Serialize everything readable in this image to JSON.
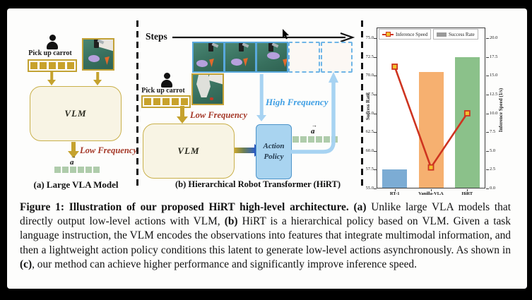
{
  "panels": {
    "a": {
      "caption": "(a) Large VLA Model",
      "instruction": "Pick up carrot",
      "vlm": "VLM",
      "low_frequency": "Low Frequency",
      "action_symbol": "a",
      "instruction_tokens": 5,
      "action_tokens": 6
    },
    "b": {
      "caption": "(b) Hierarchical Robot Transformer (HiRT)",
      "steps": "Steps",
      "instruction": "Pick up carrot",
      "vlm": "VLM",
      "low_frequency": "Low Frequency",
      "high_frequency": "High Frequency",
      "action_policy_line1": "Action",
      "action_policy_line2": "Policy",
      "action_symbol": "a",
      "instruction_tokens": 5,
      "action_tokens": 6
    }
  },
  "chart_data": {
    "type": "bar",
    "categories": [
      "RT-1",
      "Vanilla-VLA",
      "HiRT"
    ],
    "series": [
      {
        "name": "Success Rate",
        "type": "bar",
        "axis": "left",
        "values": [
          57.5,
          70.5,
          72.5
        ],
        "bar_colors": [
          "#7cacd4",
          "#f6b070",
          "#8bc18a"
        ]
      },
      {
        "name": "Inference Speed",
        "type": "line",
        "axis": "right",
        "values": [
          16.2,
          2.8,
          10.0
        ],
        "line_color": "#ce3420",
        "marker": "square",
        "marker_fill": "#f2c12e"
      }
    ],
    "left_axis": {
      "label": "Success Rate",
      "min": 55,
      "max": 75,
      "ticks": [
        "55.0",
        "57.5",
        "60.0",
        "62.5",
        "65.0",
        "67.5",
        "70.0",
        "72.5",
        "75.0"
      ]
    },
    "right_axis": {
      "label": "Inference Speed (1/s)",
      "min": 0,
      "max": 20,
      "ticks": [
        "0.0",
        "2.5",
        "5.0",
        "7.5",
        "10.0",
        "12.5",
        "15.0",
        "17.5",
        "20.0"
      ]
    },
    "legend": [
      {
        "label": "Inference Speed",
        "swatch": "red-line-yellow-square-marker"
      },
      {
        "label": "Success Rate",
        "swatch": "gray-bar"
      }
    ],
    "grid": false,
    "legend_position": "top"
  },
  "figure_caption": {
    "seg1_bold": "Figure 1: Illustration of our proposed HiRT high-level architecture.",
    "seg2": " ",
    "seg3_bold": "(a)",
    "seg4": " Unlike large VLA models that directly output low-level actions with VLM, ",
    "seg5_bold": "(b)",
    "seg6": " HiRT is a hierarchical policy based on VLM. Given a task language instruction, the VLM encodes the observations into features that integrate multimodal information, and then a lightweight action policy conditions this latent to generate low-level actions asynchronously. As shown in ",
    "seg7_bold": "(c)",
    "seg8": ", our method can achieve higher performance and significantly improve inference speed."
  },
  "colors": {
    "gold": "#c8a22c",
    "cream_box": "#f8f4e4",
    "vlm_border": "#c9b04a",
    "dark_red_text": "#a53828",
    "light_blue_arrow": "#a7d3f2",
    "blue_text": "#3f9fe4",
    "policy_fill": "#a9d4f0",
    "policy_border": "#4c93c9",
    "token_green": "#afccab",
    "bar_blue": "#7cacd4",
    "bar_orange": "#f6b070",
    "bar_green": "#8bc18a",
    "line_red": "#ce3420",
    "marker_yellow": "#f2c12e"
  }
}
